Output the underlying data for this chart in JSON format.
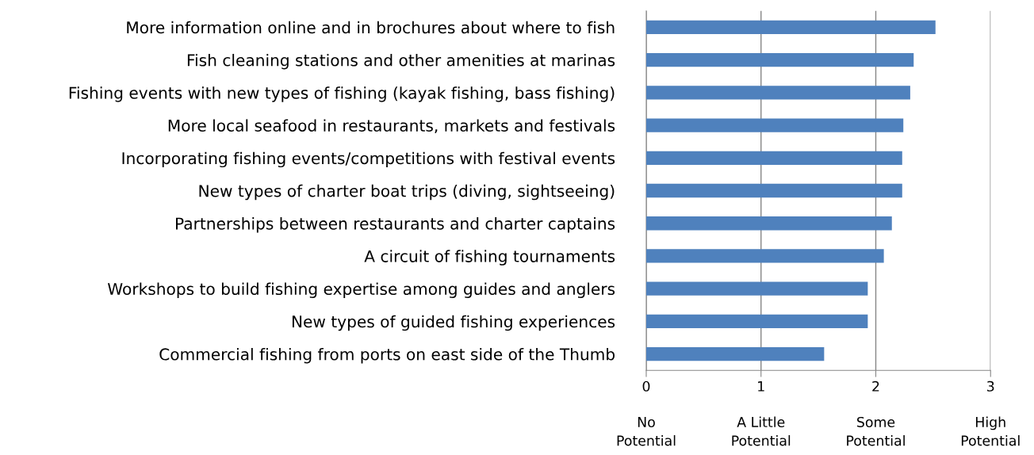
{
  "chart_data": {
    "type": "bar",
    "orientation": "horizontal",
    "categories": [
      "More information online and in brochures about where to fish",
      "Fish cleaning stations and other amenities at marinas",
      "Fishing events with new types of fishing (kayak fishing, bass fishing)",
      "More local seafood in restaurants, markets and festivals",
      "Incorporating fishing events/competitions with festival events",
      "New types of charter boat trips (diving, sightseeing)",
      "Partnerships between restaurants and charter captains",
      "A circuit of fishing tournaments",
      "Workshops to build fishing expertise among guides and anglers",
      "New types of guided fishing experiences",
      "Commercial fishing from ports on east side of the Thumb"
    ],
    "values": [
      2.52,
      2.33,
      2.3,
      2.24,
      2.23,
      2.23,
      2.14,
      2.07,
      1.93,
      1.93,
      1.55
    ],
    "color": "#4f81bd",
    "xlim": [
      0,
      3
    ],
    "xticks": [
      0,
      1,
      2,
      3
    ],
    "annotations": [
      "No\nPotential",
      "A Little\nPotential",
      "Some\nPotential",
      "High\nPotential"
    ],
    "grid": "x",
    "legend": false
  }
}
